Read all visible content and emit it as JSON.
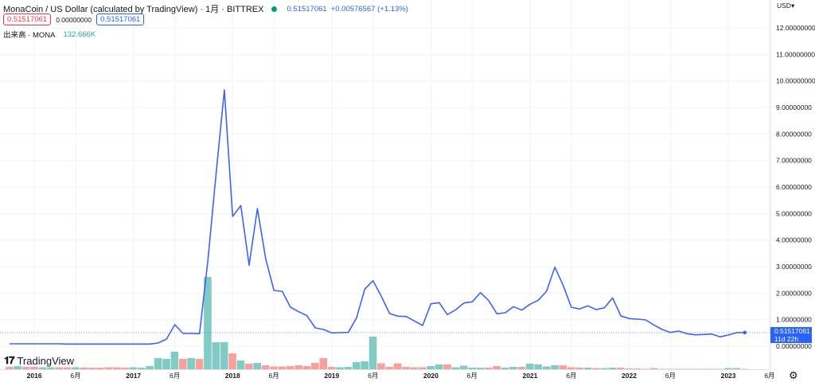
{
  "legend": {
    "title": "MonaCoin / US Dollar (calculated by TradingView) · 1月 · BITTREX",
    "last_price": "0.51517061",
    "change": "+0.00576567 (+1.13%)",
    "sell": "0.51517061",
    "spread": "0.00000000",
    "buy": "0.51517061",
    "volume_label": "出来高 · MONA",
    "volume_value": "132.666K"
  },
  "currency": "USD▾",
  "price_tag": {
    "price": "0.51517061",
    "countdown": "11d 22h"
  },
  "logo": {
    "mark": "17",
    "text": "TradingView"
  },
  "settings_icon": "gear-icon",
  "colors": {
    "line": "#3d63f5",
    "up": "#80cbc4",
    "down": "#f7a19c",
    "tag": "#2962ff"
  },
  "chart_data": {
    "type": "line",
    "interval": "1 month",
    "x_start": "2015-10",
    "x_end": "2023-03",
    "ylim": [
      0,
      12.5
    ],
    "grid": true,
    "y_ticks": [
      "12.00000000",
      "11.00000000",
      "10.00000000",
      "9.00000000",
      "8.00000000",
      "7.00000000",
      "6.00000000",
      "5.00000000",
      "4.00000000",
      "3.00000000",
      "2.00000000",
      "1.00000000",
      "0.00000000"
    ],
    "y_tick_values": [
      12,
      11,
      10,
      9,
      8,
      7,
      6,
      5,
      4,
      3,
      2,
      1,
      0
    ],
    "x_ticks": [
      {
        "label": "2016",
        "month": "2016-01",
        "bold": true
      },
      {
        "label": "6月",
        "month": "2016-06"
      },
      {
        "label": "2017",
        "month": "2017-01",
        "bold": true
      },
      {
        "label": "6月",
        "month": "2017-06"
      },
      {
        "label": "2018",
        "month": "2018-01",
        "bold": true
      },
      {
        "label": "6月",
        "month": "2018-06"
      },
      {
        "label": "2019",
        "month": "2019-01",
        "bold": true
      },
      {
        "label": "6月",
        "month": "2019-06"
      },
      {
        "label": "2020",
        "month": "2020-01",
        "bold": true
      },
      {
        "label": "6月",
        "month": "2020-06"
      },
      {
        "label": "2021",
        "month": "2021-01",
        "bold": true
      },
      {
        "label": "6月",
        "month": "2021-06"
      },
      {
        "label": "2022",
        "month": "2022-01",
        "bold": true
      },
      {
        "label": "6月",
        "month": "2022-06"
      },
      {
        "label": "2023",
        "month": "2023-01",
        "bold": true
      },
      {
        "label": "6月",
        "month": "2023-06"
      }
    ],
    "close": [
      0.09,
      0.09,
      0.09,
      0.09,
      0.09,
      0.09,
      0.09,
      0.08,
      0.08,
      0.08,
      0.08,
      0.08,
      0.08,
      0.08,
      0.08,
      0.08,
      0.08,
      0.08,
      0.12,
      0.27,
      0.81,
      0.48,
      0.48,
      0.47,
      3.2,
      6.5,
      9.66,
      4.89,
      5.3,
      3.05,
      5.19,
      3.3,
      2.1,
      2.07,
      1.47,
      1.3,
      1.15,
      0.69,
      0.63,
      0.5,
      0.51,
      0.52,
      1.07,
      2.15,
      2.47,
      1.88,
      1.23,
      1.13,
      1.12,
      0.95,
      0.78,
      1.6,
      1.64,
      1.19,
      1.37,
      1.63,
      1.67,
      2.02,
      1.72,
      1.22,
      1.26,
      1.49,
      1.36,
      1.58,
      1.73,
      2.07,
      2.98,
      2.3,
      1.47,
      1.4,
      1.52,
      1.38,
      1.45,
      1.82,
      1.14,
      1.04,
      1.02,
      0.99,
      0.8,
      0.63,
      0.52,
      0.57,
      0.47,
      0.43,
      0.44,
      0.46,
      0.35,
      0.42,
      0.51,
      0.515
    ],
    "volume_relative": [
      3,
      4,
      3,
      3,
      2.5,
      2.5,
      2.5,
      2.5,
      2.5,
      2,
      2,
      2,
      2.5,
      2.5,
      2,
      2.5,
      2,
      4,
      14,
      13,
      22,
      13,
      14,
      13,
      116,
      34,
      34,
      20,
      11,
      7,
      8,
      5,
      3.5,
      3.5,
      4,
      5,
      4,
      8,
      14,
      3,
      2.5,
      3,
      9,
      10,
      41,
      7.5,
      3,
      7.5,
      3,
      2.5,
      2.5,
      4,
      6,
      6,
      2.5,
      4.5,
      2,
      2,
      2,
      4,
      2,
      3,
      3,
      7,
      6,
      3.5,
      5,
      5,
      2.5,
      2,
      2,
      1.5,
      1.5,
      2,
      2,
      1,
      1,
      0.5,
      1.5,
      0.5,
      0.5,
      0.5,
      0.5,
      0.5,
      0.5,
      0.5,
      0.5,
      1.5,
      1.5,
      0.5
    ],
    "volume_up": [
      0,
      1,
      0,
      0,
      1,
      1,
      0,
      0,
      1,
      0,
      0,
      0,
      0,
      0,
      0,
      1,
      1,
      1,
      1,
      1,
      1,
      0,
      1,
      0,
      1,
      1,
      1,
      0,
      1,
      0,
      1,
      0,
      0,
      0,
      0,
      0,
      0,
      0,
      0,
      0,
      1,
      1,
      1,
      1,
      1,
      0,
      0,
      0,
      0,
      0,
      0,
      1,
      1,
      0,
      1,
      1,
      1,
      1,
      0,
      0,
      1,
      1,
      0,
      1,
      1,
      1,
      1,
      0,
      0,
      0,
      1,
      0,
      1,
      1,
      0,
      0,
      0,
      0,
      0,
      0,
      1,
      1,
      0,
      0,
      1,
      1,
      0,
      1,
      1,
      1
    ]
  }
}
